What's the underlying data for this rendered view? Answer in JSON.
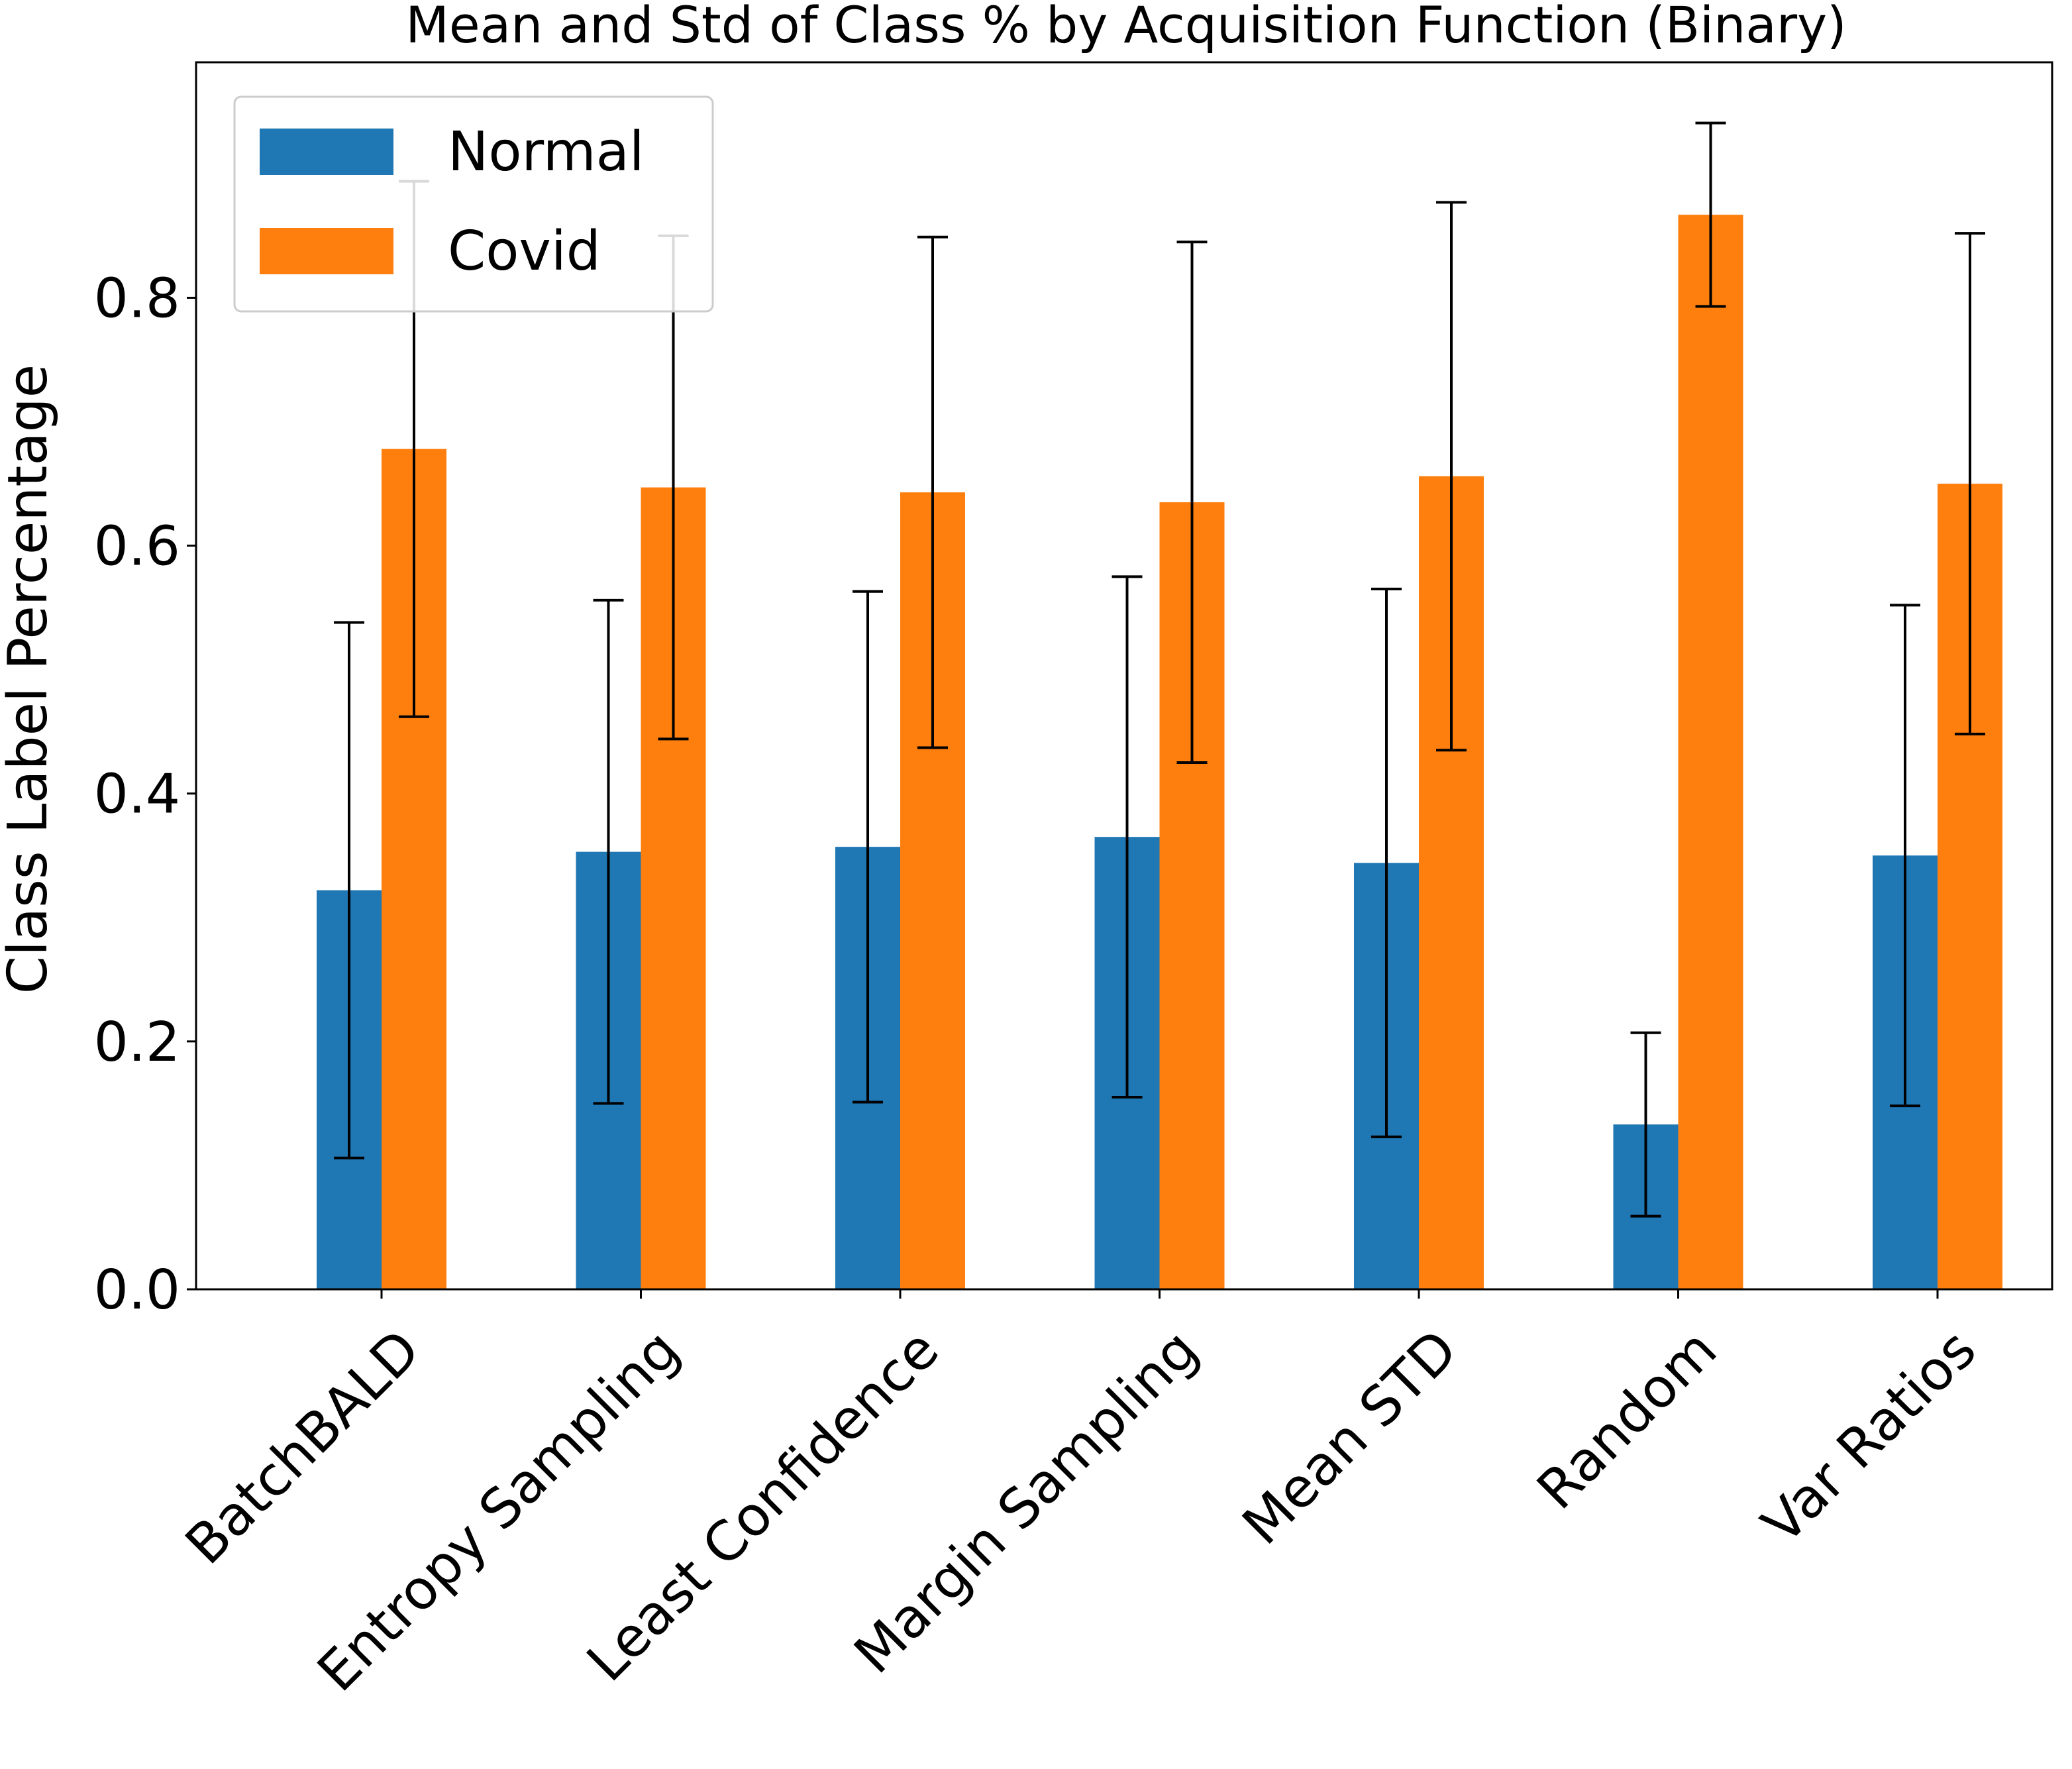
{
  "chart_data": {
    "type": "bar",
    "title": "Mean and Std of Class % by Acquisition Function (Binary)",
    "xlabel": "",
    "ylabel": "Class Label Percentage",
    "categories": [
      "BatchBALD",
      "Entropy Sampling",
      "Least Confidence",
      "Margin Sampling",
      "Mean STD",
      "Random",
      "Var Ratios"
    ],
    "series": [
      {
        "name": "Normal",
        "color": "#1f77b4",
        "values": [
          0.322,
          0.353,
          0.357,
          0.365,
          0.344,
          0.133,
          0.35
        ],
        "std": [
          0.216,
          0.203,
          0.206,
          0.21,
          0.221,
          0.074,
          0.202
        ]
      },
      {
        "name": "Covid",
        "color": "#ff7f0e",
        "values": [
          0.678,
          0.647,
          0.643,
          0.635,
          0.656,
          0.867,
          0.65
        ],
        "std": [
          0.216,
          0.203,
          0.206,
          0.21,
          0.221,
          0.074,
          0.202
        ]
      }
    ],
    "ylim": [
      0,
      0.99
    ],
    "yticks": [
      {
        "value": 0.0,
        "label": "0.0"
      },
      {
        "value": 0.2,
        "label": "0.2"
      },
      {
        "value": 0.4,
        "label": "0.4"
      },
      {
        "value": 0.6,
        "label": "0.6"
      },
      {
        "value": 0.8,
        "label": "0.8"
      }
    ],
    "grid": false,
    "legend_position": "upper-left",
    "error_bars": true
  }
}
